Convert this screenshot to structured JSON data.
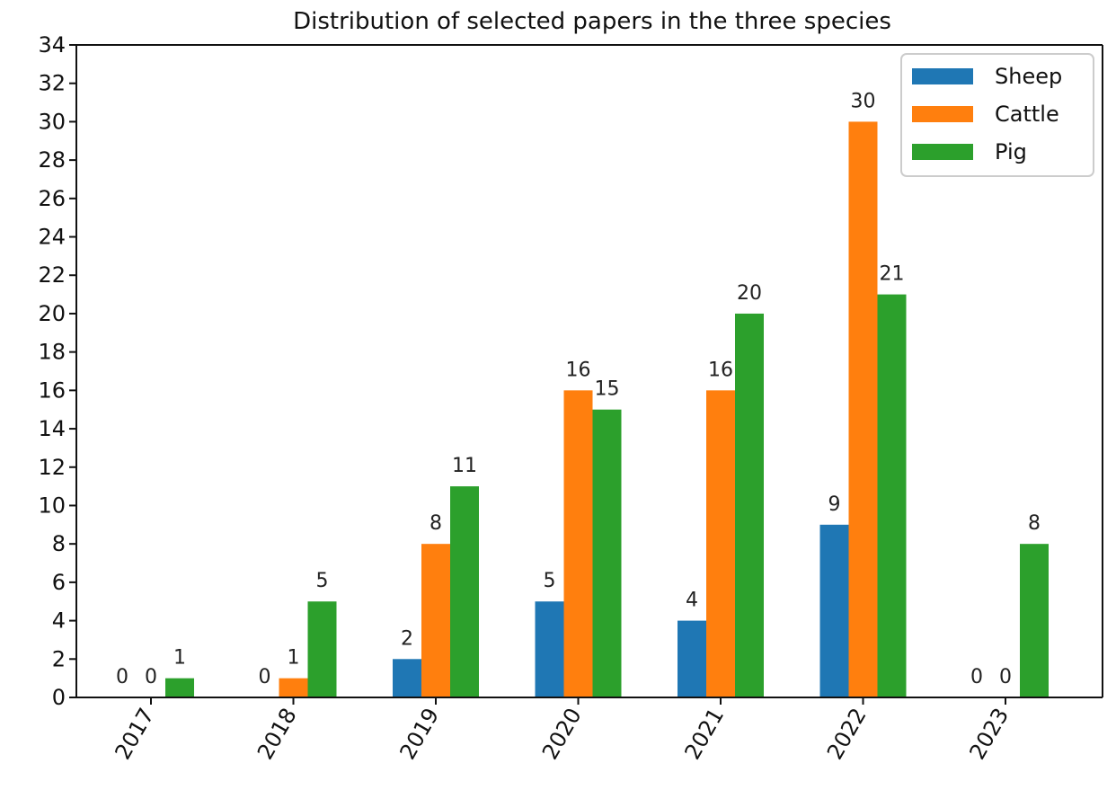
{
  "chart_data": {
    "type": "bar",
    "title": "Distribution of selected papers in the three species",
    "xlabel": "",
    "ylabel": "",
    "categories": [
      "2017",
      "2018",
      "2019",
      "2020",
      "2021",
      "2022",
      "2023"
    ],
    "series": [
      {
        "name": "Sheep",
        "color": "#1f77b4",
        "values": [
          0,
          0,
          2,
          5,
          4,
          9,
          0
        ]
      },
      {
        "name": "Cattle",
        "color": "#ff7f0e",
        "values": [
          0,
          1,
          8,
          16,
          16,
          30,
          0
        ]
      },
      {
        "name": "Pig",
        "color": "#2ca02c",
        "values": [
          1,
          5,
          11,
          15,
          20,
          21,
          8
        ]
      }
    ],
    "ylim": [
      0,
      34
    ],
    "yticks": [
      0,
      2,
      4,
      6,
      8,
      10,
      12,
      14,
      16,
      18,
      20,
      22,
      24,
      26,
      28,
      30,
      32,
      34
    ],
    "grid": false,
    "legend_position": "top-right",
    "x_tick_rotation": "rotated ~60 degrees"
  }
}
